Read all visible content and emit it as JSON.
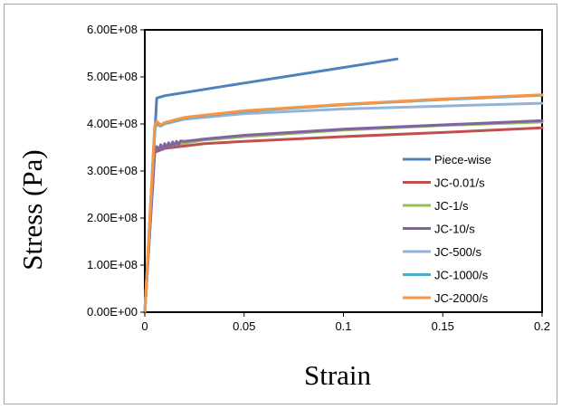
{
  "chart_data": {
    "type": "line",
    "title": "",
    "xlabel": "Strain",
    "ylabel": "Stress (Pa)",
    "xlim": [
      0,
      0.2
    ],
    "ylim": [
      0,
      600000000
    ],
    "x_ticks": [
      "0",
      "0.05",
      "0.1",
      "0.15",
      "0.2"
    ],
    "y_ticks": [
      "0.00E+00",
      "1.00E+08",
      "2.00E+08",
      "3.00E+08",
      "4.00E+08",
      "5.00E+08",
      "6.00E+08"
    ],
    "grid": false,
    "legend_position": "bottom-right",
    "series": [
      {
        "name": "Piece-wise",
        "color": "#4f81bd",
        "x": [
          0,
          0.006,
          0.01,
          0.05,
          0.1,
          0.127
        ],
        "y": [
          0,
          455000000,
          460000000,
          487000000,
          520000000,
          538000000
        ]
      },
      {
        "name": "JC-0.01/s",
        "color": "#c0504d",
        "x": [
          0,
          0.005,
          0.01,
          0.03,
          0.05,
          0.1,
          0.15,
          0.2
        ],
        "y": [
          0,
          340000000,
          348000000,
          358000000,
          363000000,
          373000000,
          382000000,
          392000000
        ]
      },
      {
        "name": "JC-1/s",
        "color": "#9bbb59",
        "x": [
          0,
          0.005,
          0.01,
          0.03,
          0.05,
          0.1,
          0.15,
          0.2
        ],
        "y": [
          0,
          345000000,
          352000000,
          366000000,
          373000000,
          387000000,
          397000000,
          404000000
        ]
      },
      {
        "name": "JC-10/s",
        "color": "#8064a2",
        "x": [
          0,
          0.005,
          0.006,
          0.007,
          0.008,
          0.009,
          0.01,
          0.011,
          0.012,
          0.013,
          0.014,
          0.015,
          0.016,
          0.017,
          0.018,
          0.02,
          0.03,
          0.05,
          0.1,
          0.15,
          0.2
        ],
        "y": [
          0,
          345000000,
          352000000,
          343000000,
          356000000,
          346000000,
          358000000,
          349000000,
          360000000,
          351000000,
          362000000,
          354000000,
          363000000,
          356000000,
          364000000,
          363000000,
          368000000,
          376000000,
          389000000,
          398000000,
          407000000
        ]
      },
      {
        "name": "JC-500/s",
        "color": "#95b3d7",
        "x": [
          0,
          0.005,
          0.006,
          0.008,
          0.01,
          0.02,
          0.05,
          0.1,
          0.15,
          0.2
        ],
        "y": [
          0,
          390000000,
          398000000,
          395000000,
          400000000,
          410000000,
          422000000,
          432000000,
          438000000,
          444000000
        ]
      },
      {
        "name": "JC-1000/s",
        "color": "#4bacc6",
        "x": [
          0,
          0.005,
          0.006,
          0.008,
          0.01,
          0.02,
          0.05,
          0.1,
          0.15,
          0.2
        ],
        "y": [
          0,
          395000000,
          403000000,
          397000000,
          402000000,
          413000000,
          427000000,
          441000000,
          452000000,
          461000000
        ]
      },
      {
        "name": "JC-2000/s",
        "color": "#f79646",
        "x": [
          0,
          0.005,
          0.006,
          0.008,
          0.01,
          0.02,
          0.05,
          0.1,
          0.15,
          0.2
        ],
        "y": [
          0,
          397000000,
          406000000,
          398000000,
          403000000,
          414000000,
          428000000,
          442000000,
          453000000,
          462000000
        ]
      }
    ]
  }
}
